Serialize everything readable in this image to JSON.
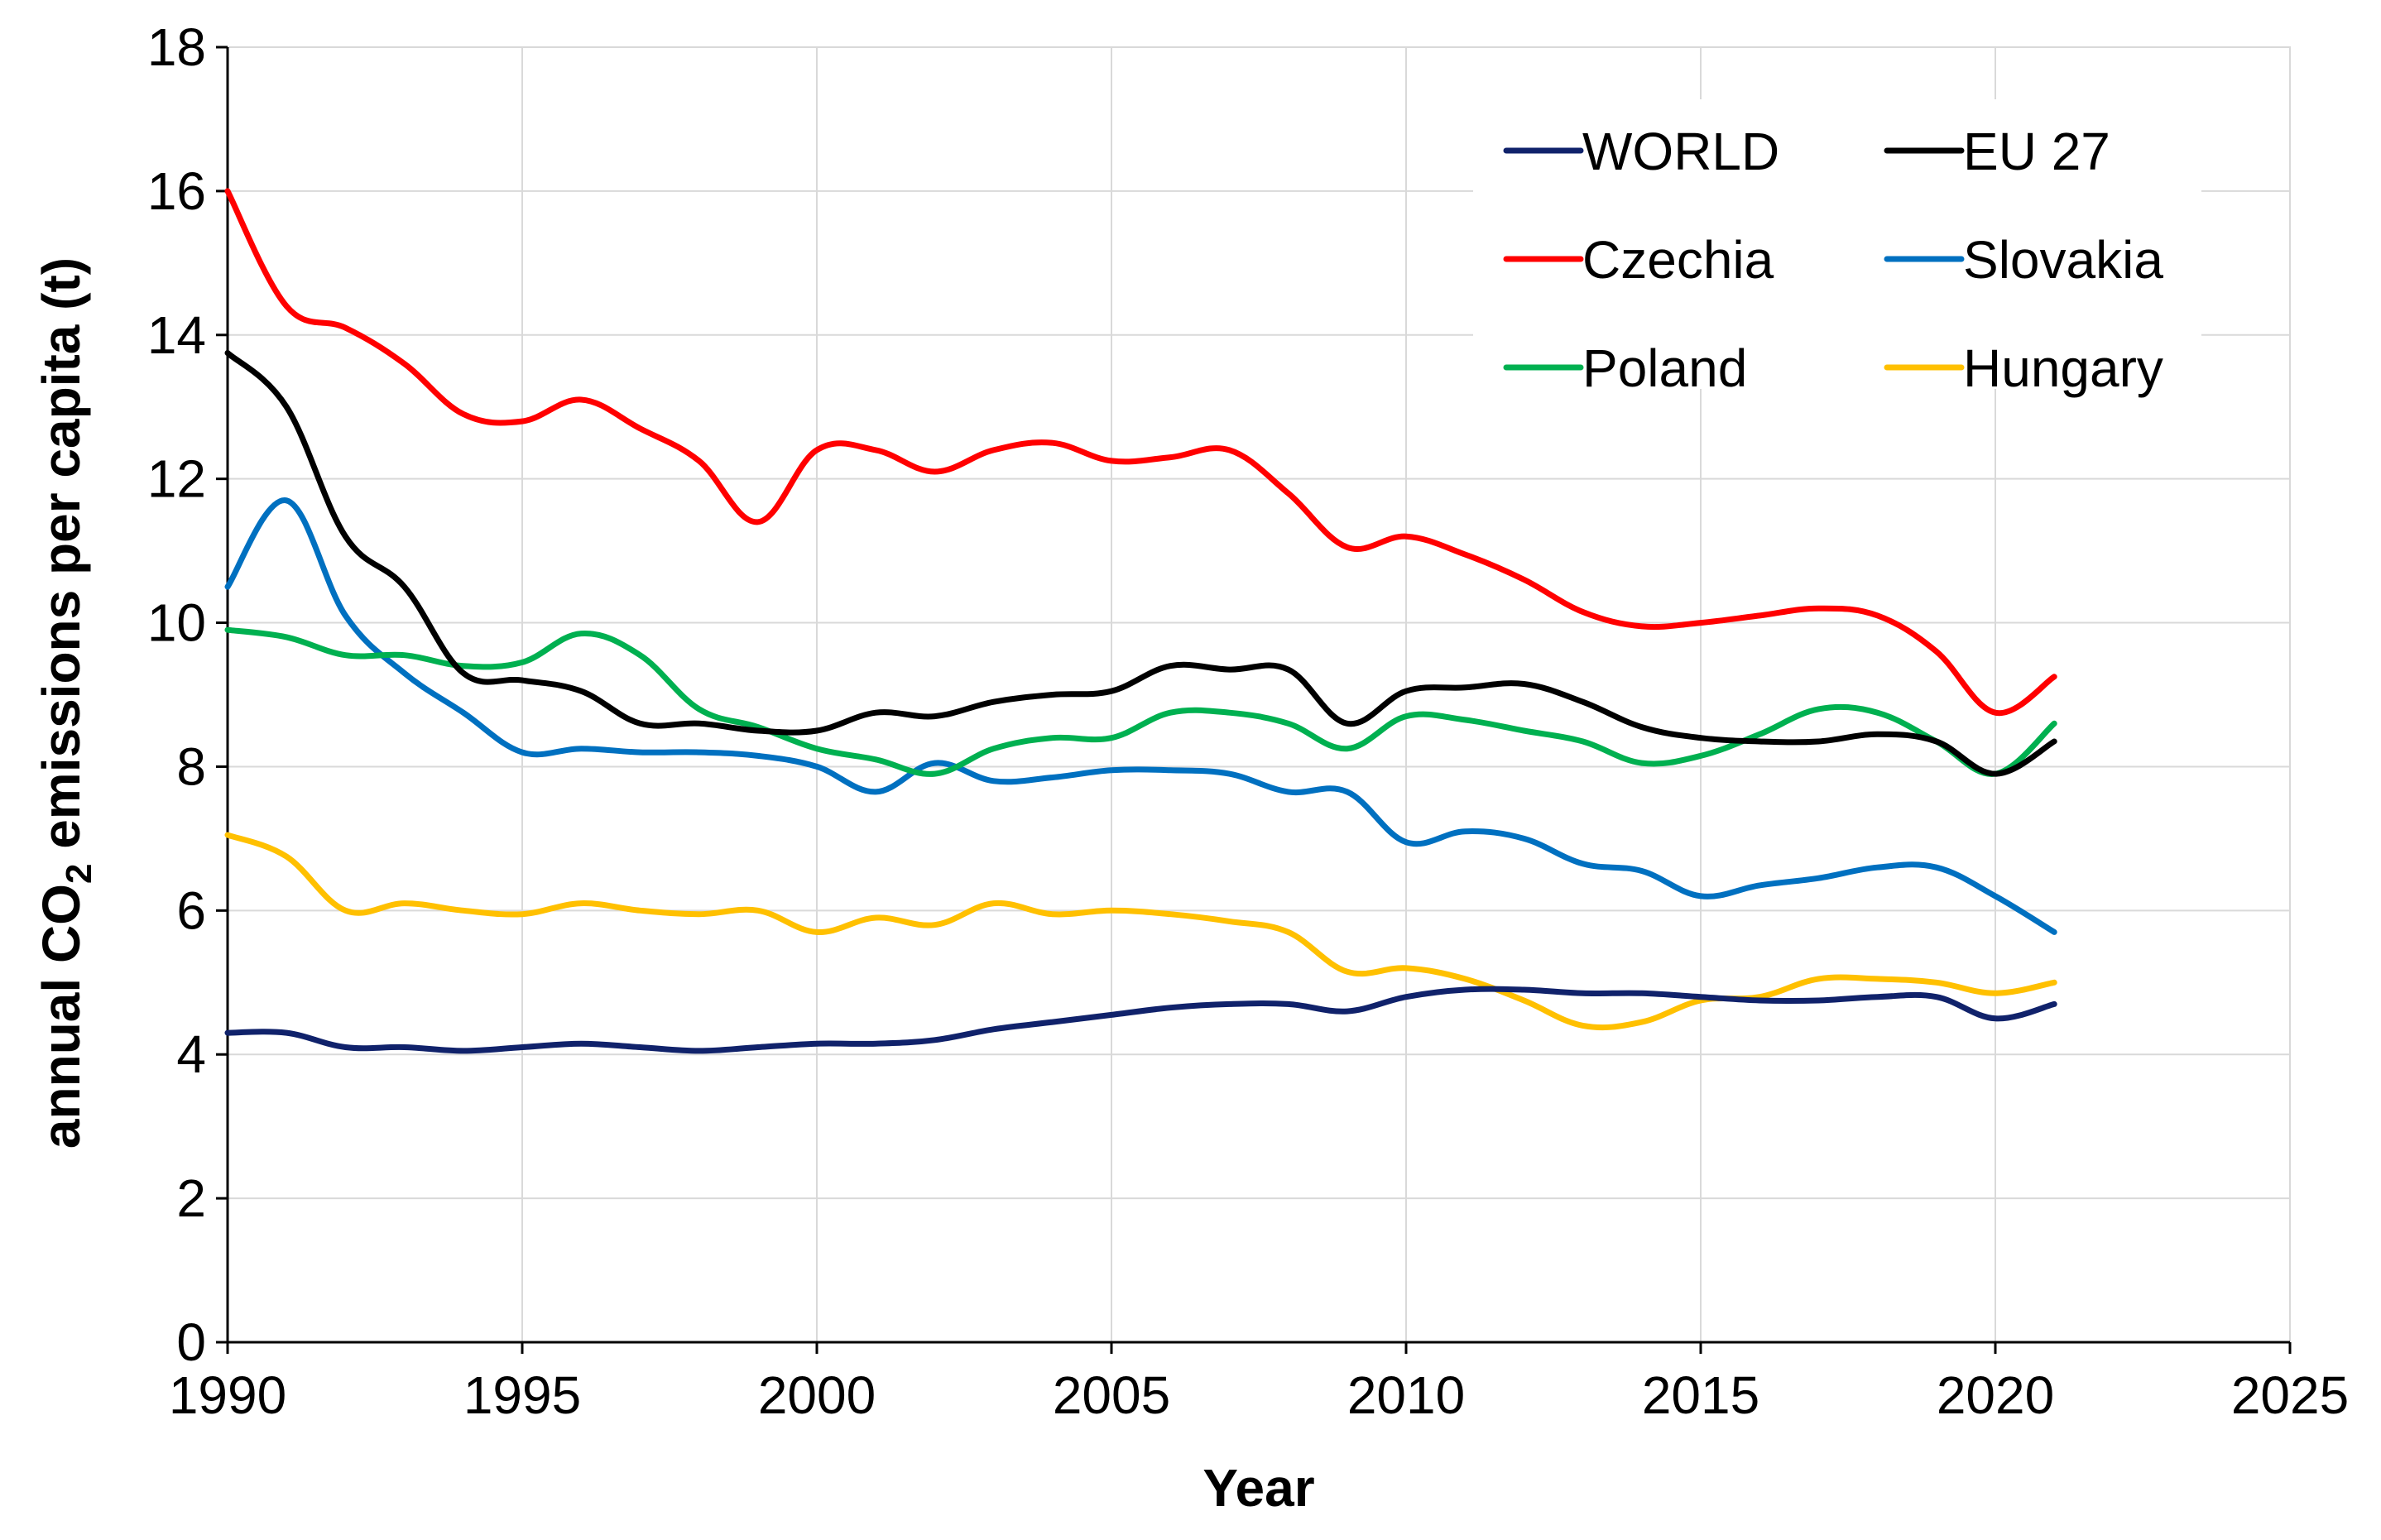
{
  "chart_data": {
    "type": "line",
    "title": "",
    "xlabel": "Year",
    "ylabel_prefix": "annual CO",
    "ylabel_subscript": "2",
    "ylabel_suffix": " emissions per capita (t)",
    "xlim": [
      1990,
      2025
    ],
    "ylim": [
      0,
      18
    ],
    "xticks": [
      1990,
      1995,
      2000,
      2005,
      2010,
      2015,
      2020,
      2025
    ],
    "yticks": [
      0,
      2,
      4,
      6,
      8,
      10,
      12,
      14,
      16,
      18
    ],
    "grid": true,
    "legend_position": "top-right",
    "x": [
      1990,
      1991,
      1992,
      1993,
      1994,
      1995,
      1996,
      1997,
      1998,
      1999,
      2000,
      2001,
      2002,
      2003,
      2004,
      2005,
      2006,
      2007,
      2008,
      2009,
      2010,
      2011,
      2012,
      2013,
      2014,
      2015,
      2016,
      2017,
      2018,
      2019,
      2020,
      2021
    ],
    "series": [
      {
        "name": "WORLD",
        "color": "#10226b",
        "values": [
          4.3,
          4.3,
          4.1,
          4.1,
          4.05,
          4.1,
          4.15,
          4.1,
          4.05,
          4.1,
          4.15,
          4.15,
          4.2,
          4.35,
          4.45,
          4.55,
          4.65,
          4.7,
          4.7,
          4.6,
          4.8,
          4.9,
          4.9,
          4.85,
          4.85,
          4.8,
          4.75,
          4.75,
          4.8,
          4.8,
          4.5,
          4.7
        ]
      },
      {
        "name": "EU 27",
        "color": "#000000",
        "values": [
          13.75,
          13.0,
          11.2,
          10.5,
          9.3,
          9.2,
          9.05,
          8.6,
          8.6,
          8.5,
          8.5,
          8.75,
          8.7,
          8.9,
          9.0,
          9.05,
          9.4,
          9.35,
          9.35,
          8.6,
          9.05,
          9.1,
          9.15,
          8.9,
          8.55,
          8.4,
          8.35,
          8.35,
          8.45,
          8.35,
          7.9,
          8.35
        ]
      },
      {
        "name": "Czechia",
        "color": "#ff0000",
        "values": [
          16.0,
          14.4,
          14.1,
          13.6,
          12.9,
          12.8,
          13.1,
          12.7,
          12.25,
          11.4,
          12.4,
          12.4,
          12.1,
          12.4,
          12.5,
          12.25,
          12.3,
          12.4,
          11.8,
          11.05,
          11.2,
          10.95,
          10.6,
          10.15,
          9.95,
          10.0,
          10.1,
          10.2,
          10.1,
          9.6,
          8.75,
          9.25
        ]
      },
      {
        "name": "Slovakia",
        "color": "#0070c0",
        "values": [
          10.5,
          11.7,
          10.1,
          9.3,
          8.75,
          8.2,
          8.25,
          8.2,
          8.2,
          8.15,
          8.0,
          7.65,
          8.05,
          7.8,
          7.85,
          7.95,
          7.95,
          7.9,
          7.65,
          7.65,
          6.95,
          7.1,
          7.0,
          6.65,
          6.55,
          6.2,
          6.35,
          6.45,
          6.6,
          6.6,
          6.2,
          5.7
        ]
      },
      {
        "name": "Poland",
        "color": "#00b050",
        "values": [
          9.9,
          9.8,
          9.55,
          9.55,
          9.4,
          9.45,
          9.85,
          9.55,
          8.8,
          8.55,
          8.25,
          8.1,
          7.9,
          8.25,
          8.4,
          8.4,
          8.75,
          8.75,
          8.6,
          8.25,
          8.7,
          8.65,
          8.5,
          8.35,
          8.05,
          8.15,
          8.45,
          8.8,
          8.75,
          8.35,
          7.9,
          8.6
        ]
      },
      {
        "name": "Hungary",
        "color": "#ffc000",
        "values": [
          7.05,
          6.75,
          6.0,
          6.1,
          6.0,
          5.95,
          6.1,
          6.0,
          5.95,
          6.0,
          5.7,
          5.9,
          5.8,
          6.1,
          5.95,
          6.0,
          5.95,
          5.85,
          5.7,
          5.15,
          5.2,
          5.05,
          4.75,
          4.4,
          4.45,
          4.75,
          4.8,
          5.05,
          5.05,
          5.0,
          4.85,
          5.0
        ]
      }
    ]
  }
}
